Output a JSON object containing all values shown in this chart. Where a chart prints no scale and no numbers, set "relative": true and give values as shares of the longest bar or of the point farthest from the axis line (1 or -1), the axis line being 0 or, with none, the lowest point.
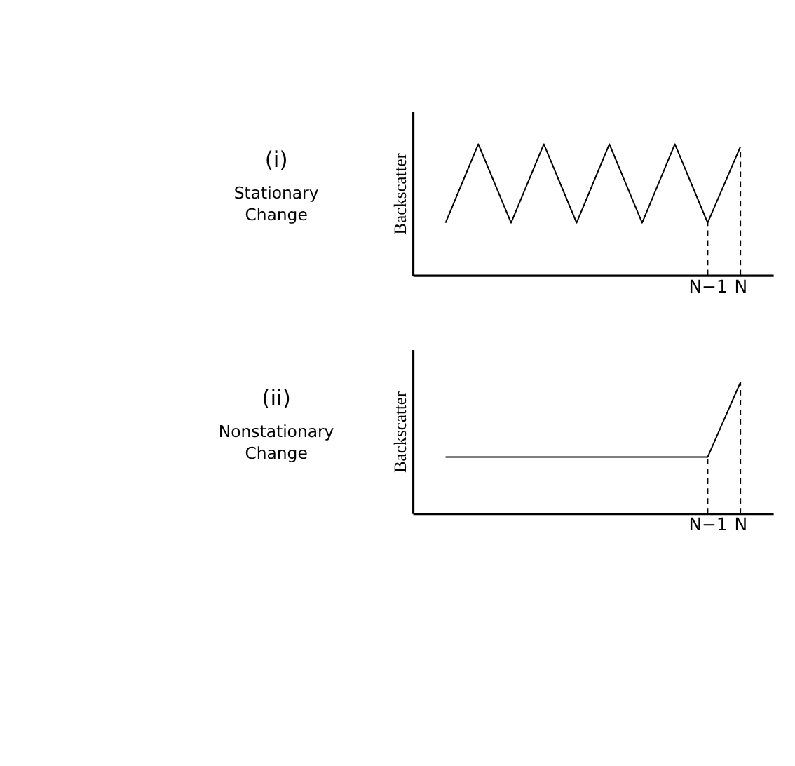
{
  "chart_data": [
    {
      "type": "line",
      "title": "(i)",
      "subtitle": "Stationary Change",
      "ylabel": "Backscatter",
      "relative": true,
      "tick_labels": "x",
      "grid": false,
      "marker": "none",
      "line_style": "solid",
      "categories": [
        null,
        null,
        null,
        null,
        null,
        null,
        null,
        null,
        "N−1",
        "N"
      ],
      "series": [
        {
          "color": "#000000",
          "values": [
            0.4,
            1,
            0.4,
            1,
            0.4,
            1,
            0.4,
            1,
            0.4,
            0.98
          ]
        }
      ],
      "ref_lines": [
        {
          "axis": "x",
          "value": "N−1",
          "line_style": "dashed"
        },
        {
          "axis": "x",
          "value": "N",
          "line_style": "dashed"
        }
      ]
    },
    {
      "type": "line",
      "title": "(ii)",
      "subtitle": "Nonstationary Change",
      "ylabel": "Backscatter",
      "relative": true,
      "tick_labels": "x",
      "grid": false,
      "marker": "none",
      "line_style": "solid",
      "categories": [
        null,
        null,
        null,
        null,
        null,
        null,
        null,
        null,
        "N−1",
        "N"
      ],
      "series": [
        {
          "color": "#000000",
          "values": [
            0.43,
            0.43,
            0.43,
            0.43,
            0.43,
            0.43,
            0.43,
            0.43,
            0.43,
            1
          ]
        }
      ],
      "ref_lines": [
        {
          "axis": "x",
          "value": "N−1",
          "line_style": "dashed"
        },
        {
          "axis": "x",
          "value": "N",
          "line_style": "dashed"
        }
      ]
    }
  ]
}
